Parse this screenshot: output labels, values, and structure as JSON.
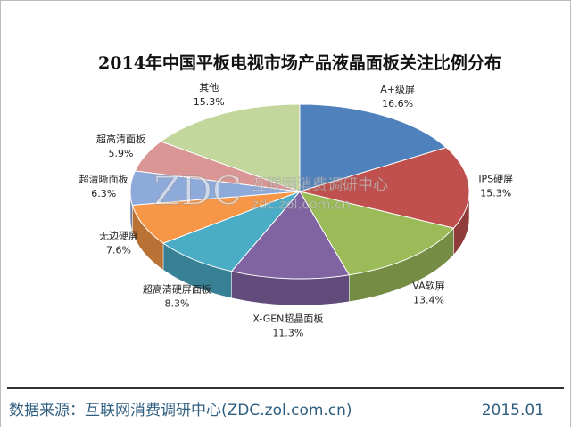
{
  "chart_data": {
    "type": "pie3d",
    "title": "2014年中国平板电视市场产品液晶面板关注比例分布",
    "categories": [
      "A+级屏",
      "IPS硬屏",
      "VA软屏",
      "X-GEN超晶面板",
      "超高清硬屏面板",
      "无边硬屏",
      "超清晰面板",
      "超高清面板",
      "其他"
    ],
    "values": [
      16.6,
      15.3,
      13.4,
      11.3,
      8.3,
      7.6,
      6.3,
      5.9,
      15.3
    ],
    "value_labels": [
      "16.6%",
      "15.3%",
      "13.4%",
      "11.3%",
      "8.3%",
      "7.6%",
      "6.3%",
      "5.9%",
      "15.3%"
    ],
    "colors": [
      "#4f81bd",
      "#c0504d",
      "#9bbb59",
      "#8064a2",
      "#4bacc6",
      "#f79646",
      "#8eaadb",
      "#d99694",
      "#c3d69b"
    ],
    "watermark": {
      "logo": "ZDC",
      "name": "互联网消费调研中心",
      "url": "zdc.zol.com.cn"
    },
    "source": "数据来源：互联网消费调研中心(ZDC.zol.com.cn)",
    "date": "2015.01"
  }
}
